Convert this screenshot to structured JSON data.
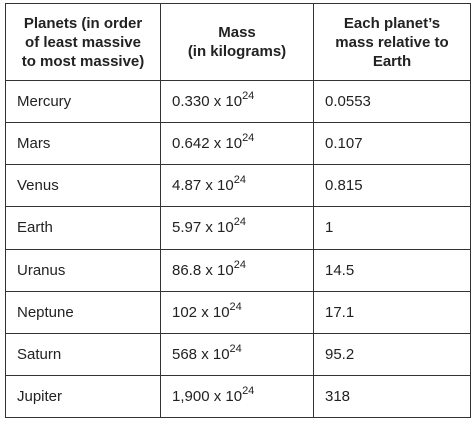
{
  "table": {
    "header": [
      [
        "Planets (in order",
        "of least massive",
        "to most massive)"
      ],
      [
        "Mass",
        "(in kilograms)"
      ],
      [
        "Each planet’s",
        "mass relative to",
        "Earth"
      ]
    ],
    "rows": [
      [
        "Mercury",
        {
          "base": "0.330 x 10",
          "exp": "24"
        },
        "0.0553"
      ],
      [
        "Mars",
        {
          "base": "0.642 x 10",
          "exp": "24"
        },
        "0.107"
      ],
      [
        "Venus",
        {
          "base": "4.87 x 10",
          "exp": "24"
        },
        "0.815"
      ],
      [
        "Earth",
        {
          "base": "5.97 x 10",
          "exp": "24"
        },
        "1"
      ],
      [
        "Uranus",
        {
          "base": "86.8 x 10",
          "exp": "24"
        },
        "14.5"
      ],
      [
        "Neptune",
        {
          "base": "102 x 10",
          "exp": "24"
        },
        "17.1"
      ],
      [
        "Saturn",
        {
          "base": "568 x 10",
          "exp": "24"
        },
        "95.2"
      ],
      [
        "Jupiter",
        {
          "base": "1,900 x 10",
          "exp": "24"
        },
        "318"
      ]
    ]
  }
}
